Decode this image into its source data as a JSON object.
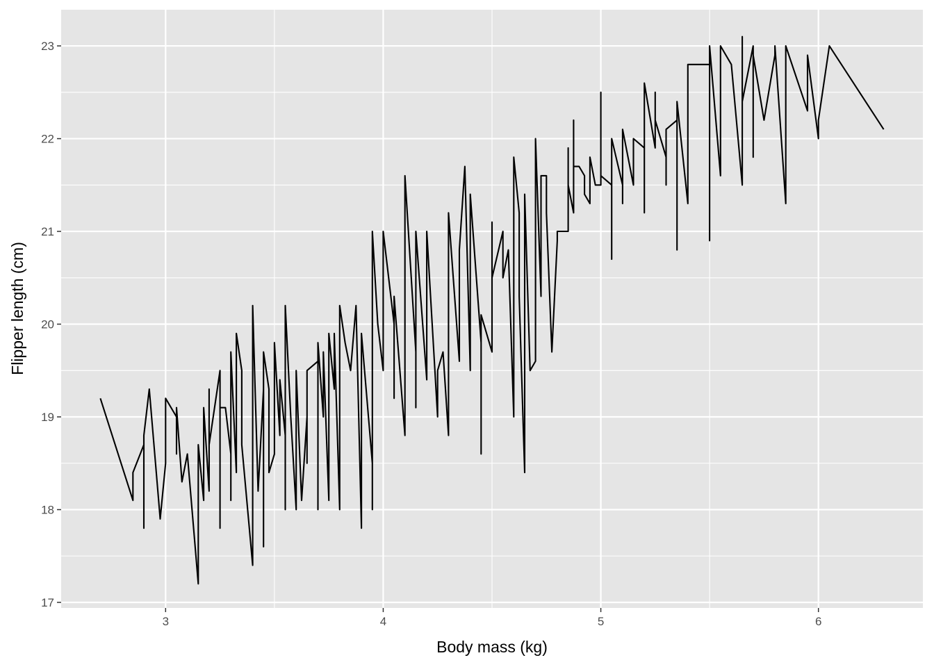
{
  "chart_data": {
    "type": "line",
    "title": "",
    "xlabel": "Body mass (kg)",
    "ylabel": "Flipper length (cm)",
    "xlim": [
      2.52,
      6.48
    ],
    "ylim": [
      16.94,
      23.39
    ],
    "x_ticks": [
      3,
      4,
      5,
      6
    ],
    "y_ticks": [
      17,
      18,
      19,
      20,
      21,
      22,
      23
    ],
    "x_tick_labels": [
      "3",
      "4",
      "5",
      "6"
    ],
    "y_tick_labels": [
      "17",
      "18",
      "19",
      "20",
      "21",
      "22",
      "23"
    ],
    "grid": true,
    "legend": "none",
    "colors": {
      "panel": "#e5e5e5",
      "grid": "#ffffff",
      "line": "#000000",
      "tick": "#4d4d4d"
    },
    "series": [
      {
        "x": [
          2.7,
          2.85,
          2.85,
          2.9,
          2.9,
          2.9,
          2.925,
          2.975,
          3.0,
          3.0,
          3.0,
          3.05,
          3.05,
          3.05,
          3.075,
          3.1,
          3.15,
          3.15,
          3.175,
          3.175,
          3.2,
          3.2,
          3.2,
          3.25,
          3.25,
          3.25,
          3.275,
          3.3,
          3.3,
          3.3,
          3.325,
          3.325,
          3.35,
          3.35,
          3.4,
          3.4,
          3.425,
          3.45,
          3.45,
          3.45,
          3.475,
          3.475,
          3.5,
          3.5,
          3.525,
          3.525,
          3.55,
          3.55,
          3.55,
          3.575,
          3.6,
          3.6,
          3.625,
          3.65,
          3.65,
          3.65,
          3.7,
          3.7,
          3.7,
          3.725,
          3.725,
          3.75,
          3.75,
          3.775,
          3.775,
          3.8,
          3.8,
          3.8,
          3.825,
          3.85,
          3.875,
          3.9,
          3.9,
          3.95,
          3.95,
          3.95,
          3.95,
          3.975,
          4.0,
          4.0,
          4.05,
          4.05,
          4.05,
          4.1,
          4.1,
          4.15,
          4.15,
          4.15,
          4.2,
          4.2,
          4.25,
          4.25,
          4.275,
          4.3,
          4.3,
          4.35,
          4.35,
          4.375,
          4.4,
          4.4,
          4.45,
          4.45,
          4.45,
          4.5,
          4.5,
          4.5,
          4.55,
          4.55,
          4.575,
          4.6,
          4.6,
          4.625,
          4.625,
          4.65,
          4.65,
          4.675,
          4.7,
          4.7,
          4.725,
          4.725,
          4.75,
          4.75,
          4.775,
          4.8,
          4.8,
          4.85,
          4.85,
          4.85,
          4.875,
          4.875,
          4.875,
          4.9,
          4.925,
          4.925,
          4.95,
          4.95,
          4.975,
          5.0,
          5.0,
          5.0,
          5.05,
          5.05,
          5.05,
          5.1,
          5.1,
          5.1,
          5.15,
          5.15,
          5.2,
          5.2,
          5.2,
          5.25,
          5.25,
          5.25,
          5.3,
          5.3,
          5.3,
          5.35,
          5.35,
          5.35,
          5.4,
          5.4,
          5.4,
          5.5,
          5.5,
          5.5,
          5.55,
          5.55,
          5.6,
          5.65,
          5.65,
          5.65,
          5.7,
          5.7,
          5.7,
          5.75,
          5.8,
          5.8,
          5.85,
          5.85,
          5.95,
          5.95,
          6.0,
          6.0,
          6.05,
          6.3
        ],
        "y": [
          19.2,
          18.1,
          18.4,
          18.7,
          17.8,
          18.8,
          19.3,
          17.9,
          18.5,
          19.2,
          19.2,
          19.0,
          18.6,
          19.1,
          18.3,
          18.6,
          17.2,
          18.7,
          18.1,
          19.1,
          18.2,
          19.3,
          18.7,
          19.5,
          17.8,
          19.1,
          19.1,
          18.6,
          18.1,
          19.7,
          18.4,
          19.9,
          19.5,
          18.7,
          17.4,
          20.2,
          18.2,
          19.3,
          17.6,
          19.7,
          19.3,
          18.4,
          18.6,
          19.8,
          18.8,
          19.4,
          18.8,
          18.0,
          20.2,
          19.0,
          18.0,
          19.5,
          18.1,
          19.0,
          18.5,
          19.5,
          19.6,
          18.0,
          19.8,
          19.0,
          19.7,
          18.1,
          19.9,
          19.3,
          19.9,
          18.0,
          18.6,
          20.2,
          19.8,
          19.5,
          20.2,
          17.8,
          19.9,
          18.5,
          18.0,
          19.5,
          21.0,
          20.0,
          19.5,
          21.0,
          20.0,
          19.2,
          20.3,
          18.8,
          21.6,
          19.7,
          19.1,
          21.0,
          19.4,
          21.0,
          19.0,
          19.5,
          19.7,
          18.8,
          21.2,
          19.6,
          20.8,
          21.7,
          19.5,
          21.4,
          19.8,
          18.6,
          20.1,
          19.7,
          21.1,
          20.5,
          21.0,
          20.5,
          20.8,
          19.0,
          21.8,
          21.2,
          20.3,
          18.4,
          21.4,
          19.5,
          19.6,
          22.0,
          20.3,
          21.6,
          21.6,
          21.2,
          19.7,
          20.9,
          21.0,
          21.0,
          21.9,
          21.5,
          21.2,
          22.2,
          21.7,
          21.7,
          21.6,
          21.4,
          21.3,
          21.8,
          21.5,
          21.5,
          22.5,
          21.6,
          21.5,
          20.7,
          22.0,
          21.5,
          21.3,
          22.1,
          21.5,
          22.0,
          21.9,
          21.2,
          22.6,
          21.9,
          22.5,
          22.2,
          21.8,
          21.5,
          22.1,
          22.2,
          20.8,
          22.4,
          21.3,
          21.5,
          22.8,
          22.8,
          20.9,
          23.0,
          21.6,
          23.0,
          22.8,
          21.5,
          23.1,
          22.4,
          23.0,
          21.8,
          22.9,
          22.2,
          22.9,
          23.0,
          21.3,
          23.0,
          22.3,
          22.9,
          22.0,
          22.2,
          23.0,
          22.1
        ]
      }
    ]
  }
}
